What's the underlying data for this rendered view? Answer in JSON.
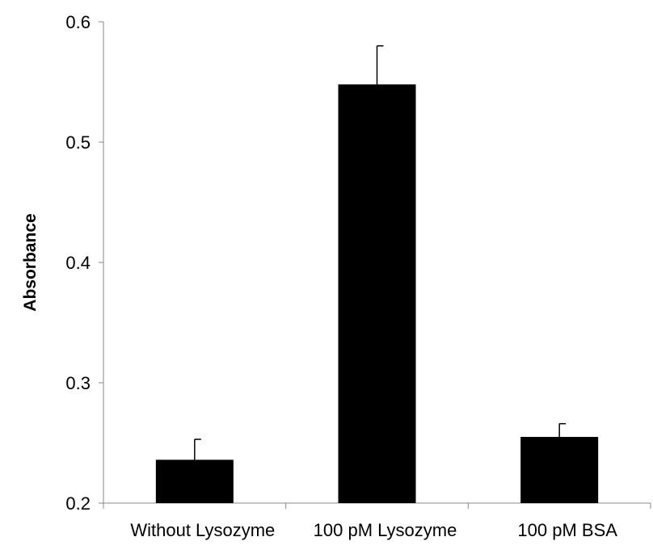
{
  "chart_data": {
    "type": "bar",
    "title": "",
    "xlabel": "",
    "ylabel": "Absorbance",
    "categories": [
      "Without Lysozyme",
      "100 pM Lysozyme",
      "100 pM BSA"
    ],
    "values": [
      0.236,
      0.548,
      0.255
    ],
    "errors": [
      0.017,
      0.032,
      0.011
    ],
    "ylim": [
      0.2,
      0.6
    ],
    "yticks": [
      "0.2",
      "0.3",
      "0.4",
      "0.5",
      "0.6"
    ],
    "ytick_values": [
      0.2,
      0.3,
      0.4,
      0.5,
      0.6
    ],
    "grid": false,
    "bar_color": "#000000"
  }
}
